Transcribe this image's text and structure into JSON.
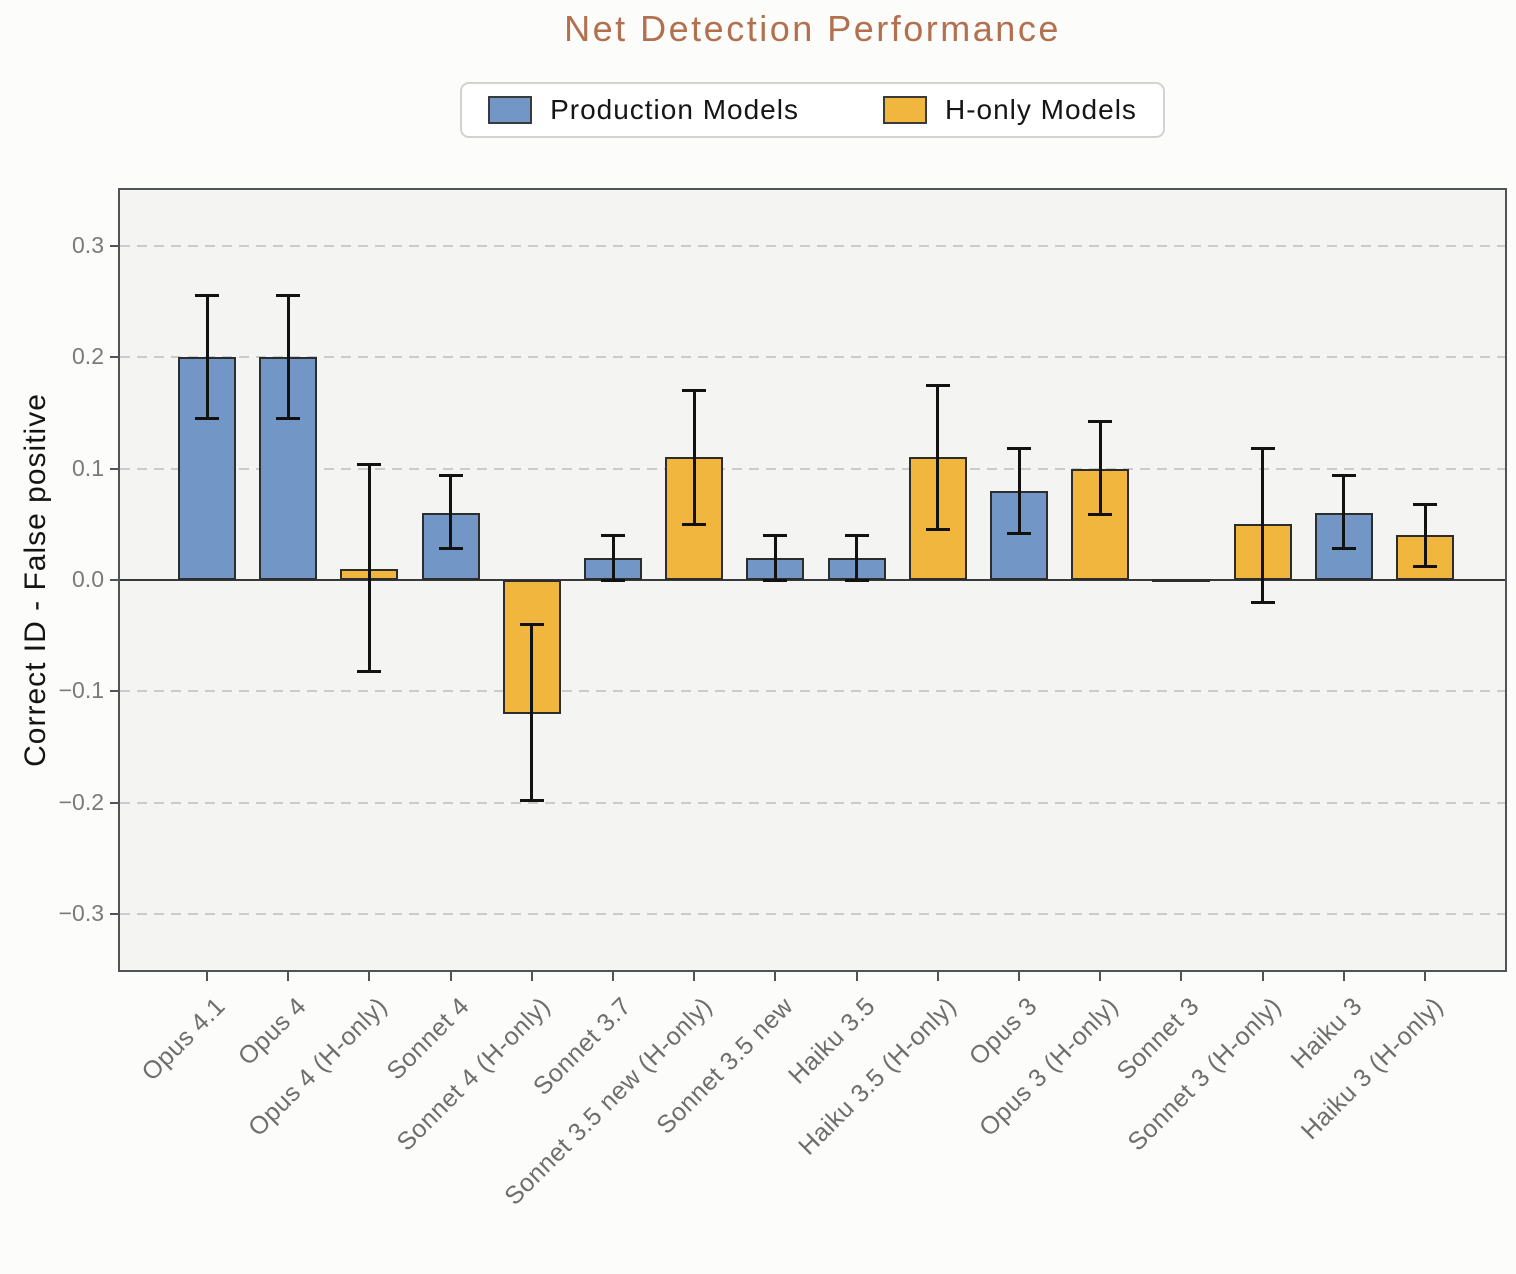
{
  "title": {
    "text": "Net Detection Performance",
    "color": "#b2704f"
  },
  "legend": {
    "items": [
      {
        "label": "Production Models",
        "series": "production",
        "color": "#7296c5"
      },
      {
        "label": "H-only Models",
        "series": "h_only",
        "color": "#f0b63e"
      }
    ]
  },
  "chart_data": {
    "type": "bar",
    "title": "Net Detection Performance",
    "xlabel": "",
    "ylabel": "Correct ID - False positive",
    "ylim": [
      -0.35,
      0.35
    ],
    "yticks": [
      0.3,
      0.2,
      0.1,
      0.0,
      -0.1,
      -0.2,
      -0.3
    ],
    "ytick_labels": [
      "0.3",
      "0.2",
      "0.1",
      "0.0",
      "−0.1",
      "−0.2",
      "−0.3"
    ],
    "grid": "horizontal dashed gridlines at non-zero ticks, solid line at zero",
    "legend_position": "top center",
    "error_bars": "black vertical lines with caps (confidence intervals)",
    "series_colors": {
      "production": "#7296c5",
      "h_only": "#f0b63e"
    },
    "categories": [
      "Opus 4.1",
      "Opus 4",
      "Opus 4 (H-only)",
      "Sonnet 4",
      "Sonnet 4 (H-only)",
      "Sonnet 3.7",
      "Sonnet 3.5 new (H-only)",
      "Sonnet 3.5 new",
      "Haiku 3.5",
      "Haiku 3.5 (H-only)",
      "Opus 3",
      "Opus 3 (H-only)",
      "Sonnet 3",
      "Sonnet 3 (H-only)",
      "Haiku 3",
      "Haiku 3 (H-only)"
    ],
    "bars": [
      {
        "label": "Opus 4.1",
        "series": "production",
        "value": 0.2,
        "ci": [
          0.145,
          0.255
        ]
      },
      {
        "label": "Opus 4",
        "series": "production",
        "value": 0.2,
        "ci": [
          0.145,
          0.255
        ]
      },
      {
        "label": "Opus 4 (H-only)",
        "series": "h_only",
        "value": 0.01,
        "ci": [
          -0.082,
          0.104
        ]
      },
      {
        "label": "Sonnet 4",
        "series": "production",
        "value": 0.06,
        "ci": [
          0.028,
          0.094
        ]
      },
      {
        "label": "Sonnet 4 (H-only)",
        "series": "h_only",
        "value": -0.12,
        "ci": [
          -0.198,
          -0.04
        ]
      },
      {
        "label": "Sonnet 3.7",
        "series": "production",
        "value": 0.02,
        "ci": [
          0.0,
          0.04
        ]
      },
      {
        "label": "Sonnet 3.5 new (H-only)",
        "series": "h_only",
        "value": 0.11,
        "ci": [
          0.05,
          0.17
        ]
      },
      {
        "label": "Sonnet 3.5 new",
        "series": "production",
        "value": 0.02,
        "ci": [
          0.0,
          0.04
        ]
      },
      {
        "label": "Haiku 3.5",
        "series": "production",
        "value": 0.02,
        "ci": [
          0.0,
          0.04
        ]
      },
      {
        "label": "Haiku 3.5 (H-only)",
        "series": "h_only",
        "value": 0.11,
        "ci": [
          0.045,
          0.175
        ]
      },
      {
        "label": "Opus 3",
        "series": "production",
        "value": 0.08,
        "ci": [
          0.042,
          0.118
        ]
      },
      {
        "label": "Opus 3 (H-only)",
        "series": "h_only",
        "value": 0.1,
        "ci": [
          0.059,
          0.142
        ]
      },
      {
        "label": "Sonnet 3",
        "series": "production",
        "value": 0.0,
        "ci": null
      },
      {
        "label": "Sonnet 3 (H-only)",
        "series": "h_only",
        "value": 0.05,
        "ci": [
          -0.02,
          0.118
        ]
      },
      {
        "label": "Haiku 3",
        "series": "production",
        "value": 0.06,
        "ci": [
          0.028,
          0.094
        ]
      },
      {
        "label": "Haiku 3 (H-only)",
        "series": "h_only",
        "value": 0.04,
        "ci": [
          0.012,
          0.068
        ]
      }
    ]
  }
}
